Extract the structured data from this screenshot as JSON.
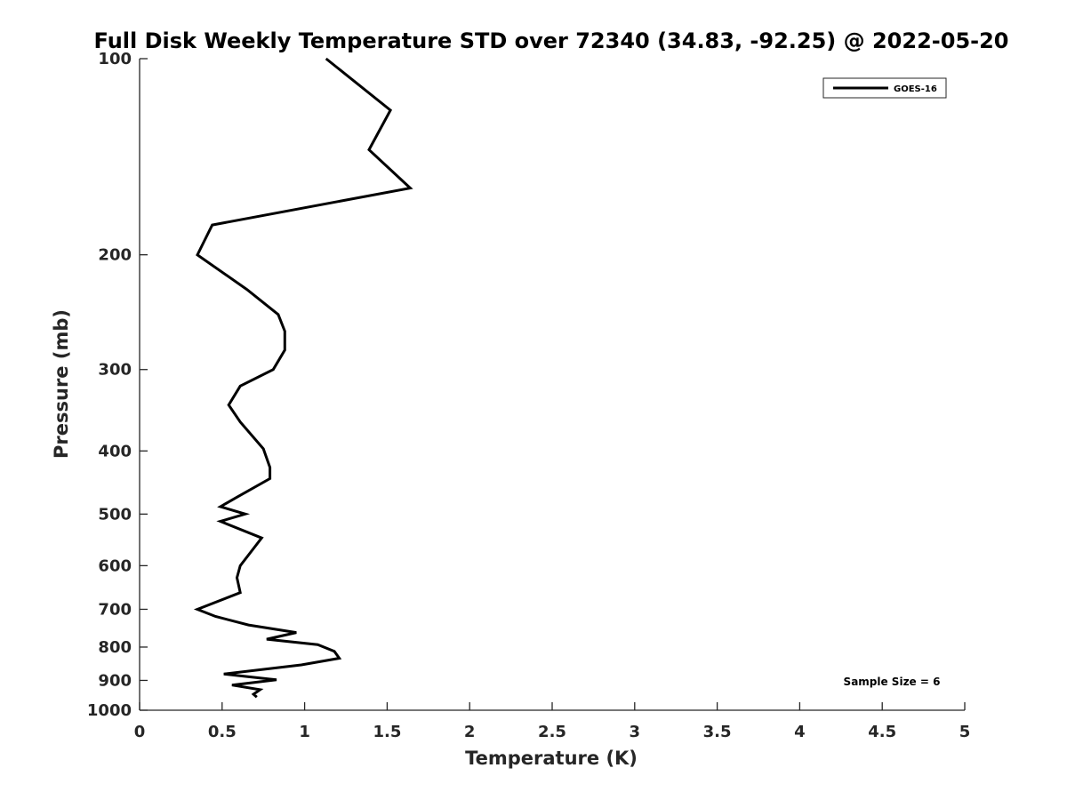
{
  "chart_data": {
    "type": "line",
    "title": "Full Disk Weekly Temperature STD over 72340 (34.83, -92.25) @ 2022-05-20",
    "xlabel": "Temperature (K)",
    "ylabel": "Pressure (mb)",
    "xlim": [
      0,
      5
    ],
    "ylim": [
      100,
      1000
    ],
    "y_scale": "log",
    "y_reversed": true,
    "x_ticks": [
      "0",
      "0.5",
      "1",
      "1.5",
      "2",
      "2.5",
      "3",
      "3.5",
      "4",
      "4.5",
      "5"
    ],
    "y_ticks": [
      "100",
      "200",
      "300",
      "400",
      "500",
      "600",
      "700",
      "800",
      "900",
      "1000"
    ],
    "grid": false,
    "legend_position": "top-right",
    "annotation": "Sample Size = 6",
    "series": [
      {
        "name": "GOES-16",
        "color": "#000000",
        "points": [
          [
            1.13,
            100
          ],
          [
            1.52,
            120
          ],
          [
            1.39,
            138
          ],
          [
            1.64,
            158
          ],
          [
            0.44,
            180
          ],
          [
            0.35,
            200
          ],
          [
            0.65,
            226
          ],
          [
            0.84,
            247
          ],
          [
            0.88,
            262
          ],
          [
            0.88,
            280
          ],
          [
            0.81,
            300
          ],
          [
            0.61,
            318
          ],
          [
            0.54,
            340
          ],
          [
            0.61,
            361
          ],
          [
            0.75,
            397
          ],
          [
            0.79,
            424
          ],
          [
            0.79,
            441
          ],
          [
            0.59,
            471
          ],
          [
            0.49,
            487
          ],
          [
            0.64,
            500
          ],
          [
            0.49,
            513
          ],
          [
            0.74,
            544
          ],
          [
            0.61,
            600
          ],
          [
            0.59,
            626
          ],
          [
            0.61,
            660
          ],
          [
            0.35,
            700
          ],
          [
            0.46,
            718
          ],
          [
            0.66,
            740
          ],
          [
            0.95,
            760
          ],
          [
            0.77,
            778
          ],
          [
            1.08,
            793
          ],
          [
            1.18,
            812
          ],
          [
            1.21,
            832
          ],
          [
            0.98,
            852
          ],
          [
            0.51,
            880
          ],
          [
            0.83,
            898
          ],
          [
            0.56,
            915
          ],
          [
            0.73,
            930
          ],
          [
            0.69,
            945
          ],
          [
            0.71,
            955
          ]
        ]
      }
    ]
  }
}
